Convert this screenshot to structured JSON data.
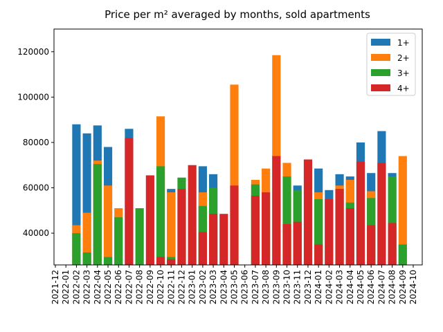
{
  "chart_data": {
    "type": "bar",
    "overlap": true,
    "title": "Price per m² averaged by months, sold apartments",
    "categories": [
      "2021-12",
      "2022-01",
      "2022-02",
      "2022-03",
      "2022-04",
      "2022-05",
      "2022-06",
      "2022-07",
      "2022-08",
      "2022-09",
      "2022-10",
      "2022-11",
      "2022-12",
      "2023-01",
      "2023-02",
      "2023-03",
      "2023-04",
      "2023-05",
      "2023-06",
      "2023-07",
      "2023-08",
      "2023-09",
      "2023-10",
      "2023-11",
      "2023-12",
      "2024-01",
      "2024-02",
      "2024-03",
      "2024-04",
      "2024-05",
      "2024-06",
      "2024-07",
      "2024-08",
      "2024-09",
      "2024-10"
    ],
    "series": [
      {
        "name": "1+",
        "color": "#1f77b4",
        "values": [
          null,
          null,
          88000,
          84000,
          87500,
          78000,
          null,
          86000,
          null,
          null,
          null,
          59500,
          null,
          null,
          69500,
          66000,
          null,
          null,
          null,
          null,
          null,
          null,
          null,
          61000,
          null,
          68500,
          59000,
          66000,
          65000,
          80000,
          66500,
          85000,
          66500,
          null,
          null
        ]
      },
      {
        "name": "2+",
        "color": "#ff7f0e",
        "values": [
          null,
          null,
          43500,
          49000,
          72000,
          61000,
          51000,
          null,
          null,
          null,
          91500,
          58000,
          null,
          null,
          58000,
          null,
          null,
          105500,
          null,
          63500,
          68500,
          118500,
          71000,
          null,
          null,
          58000,
          null,
          61000,
          63500,
          null,
          58500,
          null,
          null,
          74000,
          null
        ]
      },
      {
        "name": "3+",
        "color": "#2ca02c",
        "values": [
          null,
          null,
          40000,
          31500,
          70500,
          29500,
          47000,
          null,
          51000,
          null,
          69500,
          29500,
          64500,
          null,
          52000,
          60000,
          null,
          null,
          null,
          61500,
          null,
          null,
          65000,
          59000,
          null,
          55000,
          null,
          null,
          53500,
          null,
          55500,
          null,
          65000,
          35000,
          null
        ]
      },
      {
        "name": "4+",
        "color": "#d62728",
        "values": [
          null,
          null,
          null,
          null,
          null,
          null,
          null,
          82000,
          null,
          65500,
          29500,
          28500,
          59500,
          70000,
          40500,
          48500,
          48500,
          61000,
          null,
          56500,
          58000,
          74000,
          44000,
          45000,
          72500,
          35000,
          55000,
          59500,
          51000,
          71500,
          43500,
          71000,
          44500,
          null,
          null
        ]
      }
    ],
    "ylim": [
      26000,
      130000
    ],
    "yticks": [
      40000,
      60000,
      80000,
      100000,
      120000
    ],
    "legend": "upper right"
  }
}
